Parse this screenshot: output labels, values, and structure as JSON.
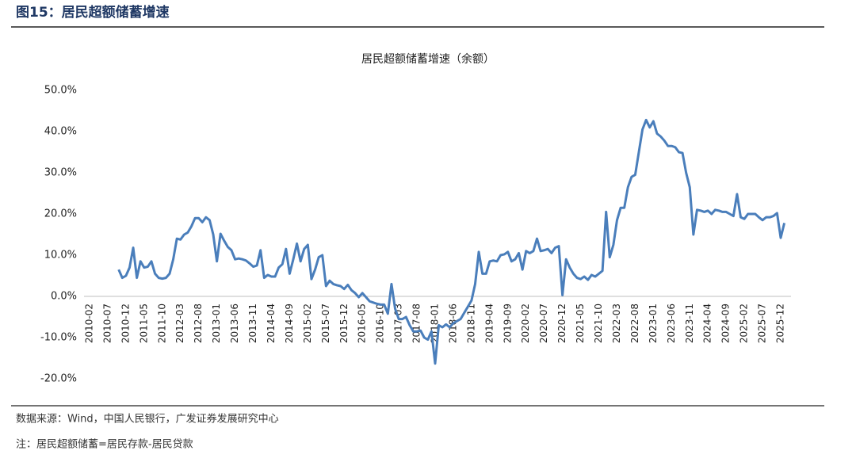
{
  "header": {
    "title": "图15：居民超额储蓄增速"
  },
  "chart_data": {
    "type": "line",
    "title": "居民超额储蓄增速（余额）",
    "categories": [
      "2010-02",
      null,
      null,
      null,
      null,
      "2010-07",
      null,
      null,
      null,
      null,
      "2010-12",
      null,
      null,
      null,
      null,
      "2011-05",
      null,
      null,
      null,
      null,
      "2011-10",
      null,
      null,
      null,
      null,
      "2012-03",
      null,
      null,
      null,
      null,
      "2012-08",
      null,
      null,
      null,
      null,
      "2013-01",
      null,
      null,
      null,
      null,
      "2013-06",
      null,
      null,
      null,
      null,
      "2013-11",
      null,
      null,
      null,
      null,
      "2014-04",
      null,
      null,
      null,
      null,
      "2014-09",
      null,
      null,
      null,
      null,
      "2015-02",
      null,
      null,
      null,
      null,
      "2015-07",
      null,
      null,
      null,
      null,
      "2015-12",
      null,
      null,
      null,
      null,
      "2016-05",
      null,
      null,
      null,
      null,
      "2016-10",
      null,
      null,
      null,
      null,
      "2017-03",
      null,
      null,
      null,
      null,
      "2017-08",
      null,
      null,
      null,
      null,
      "2018-01",
      null,
      null,
      null,
      null,
      "2018-06",
      null,
      null,
      null,
      null,
      "2018-11",
      null,
      null,
      null,
      null,
      "2019-04",
      null,
      null,
      null,
      null,
      "2019-09",
      null,
      null,
      null,
      null,
      "2020-02",
      null,
      null,
      null,
      null,
      "2020-07",
      null,
      null,
      null,
      null,
      "2020-12",
      null,
      null,
      null,
      null,
      "2021-05",
      null,
      null,
      null,
      null,
      "2021-10",
      null,
      null,
      null,
      null,
      "2022-03",
      null,
      null,
      null,
      null,
      "2022-08",
      null,
      null,
      null,
      null,
      "2023-01",
      null,
      null,
      null,
      null,
      "2023-06",
      null,
      null,
      null,
      null,
      "2023-11",
      null,
      null,
      null,
      null,
      "2024-04",
      null,
      null,
      null,
      null,
      "2024-09",
      null,
      null,
      null,
      null,
      "2025-02",
      null,
      null,
      null,
      null,
      "2025-07",
      null,
      null,
      null,
      null,
      "2025-12",
      null
    ],
    "series": [
      {
        "color": "#4a7ebb",
        "values": [
          null,
          null,
          null,
          null,
          null,
          null,
          null,
          null,
          6.5,
          4.5,
          5,
          7,
          11.8,
          4.5,
          8.5,
          7,
          7.2,
          8.5,
          5.5,
          4.5,
          4.3,
          4.5,
          5.5,
          9,
          14,
          13.8,
          15,
          15.5,
          17,
          19,
          19,
          18,
          19.2,
          18.5,
          15,
          8.5,
          15.2,
          13.5,
          12,
          11.2,
          9,
          9.2,
          9,
          8.7,
          8,
          7.2,
          7.5,
          11.2,
          4.5,
          5.2,
          4.8,
          4.8,
          7,
          7.8,
          11.5,
          5.5,
          9,
          12.8,
          8.5,
          11.5,
          12.5,
          4.2,
          6.5,
          9.5,
          10,
          2.5,
          3.8,
          3,
          2.7,
          2.5,
          1.8,
          2.8,
          1.5,
          0.8,
          -0.2,
          0.8,
          -0.2,
          -1.2,
          -1.5,
          -1.8,
          -2,
          -2,
          -4.2,
          3,
          -3,
          -5.5,
          -5.5,
          -5,
          -7,
          -8.5,
          -8.5,
          -8.3,
          -10,
          -10.5,
          -8.5,
          -16.3,
          -7,
          -7.5,
          -6.8,
          -7.5,
          -6.5,
          -6,
          -5.5,
          -4,
          -2.5,
          -1,
          3,
          10.8,
          5.5,
          5.5,
          8.5,
          8.7,
          8.5,
          10,
          10.2,
          10.8,
          8.5,
          9,
          10.5,
          6.5,
          11,
          10.5,
          11,
          14,
          11,
          11.2,
          11.5,
          10.5,
          11.8,
          12.2,
          0.3,
          9,
          7,
          5.5,
          4.5,
          4.2,
          4.8,
          4,
          5.2,
          4.8,
          5.5,
          6.2,
          20.5,
          9.5,
          12.5,
          18.5,
          21.5,
          21.5,
          26.5,
          29,
          29.5,
          35,
          40.5,
          42.8,
          41,
          42.5,
          39.5,
          38.8,
          37.8,
          36.5,
          36.5,
          36.2,
          35,
          34.8,
          30,
          26.5,
          15,
          21,
          20.8,
          20.5,
          20.8,
          20,
          21,
          20.8,
          20.5,
          20.5,
          20,
          19.5,
          24.8,
          19.2,
          18.8,
          20,
          20,
          20,
          19.2,
          18.5,
          19.2,
          19.2,
          19.5,
          20.2,
          14.2,
          17.8
        ]
      }
    ],
    "ylim": [
      -20,
      50
    ],
    "yticks": [
      {
        "value": -20,
        "label": "-20.0%"
      },
      {
        "value": -10,
        "label": "-10.0%"
      },
      {
        "value": 0,
        "label": "0.0%"
      },
      {
        "value": 10,
        "label": "10.0%"
      },
      {
        "value": 20,
        "label": "20.0%"
      },
      {
        "value": 30,
        "label": "30.0%"
      },
      {
        "value": 40,
        "label": "40.0%"
      },
      {
        "value": 50,
        "label": "50.0%"
      }
    ]
  },
  "footer": {
    "source": "数据来源：Wind，中国人民银行，广发证券发展研究中心",
    "note": "注：居民超额储蓄=居民存款-居民贷款"
  }
}
